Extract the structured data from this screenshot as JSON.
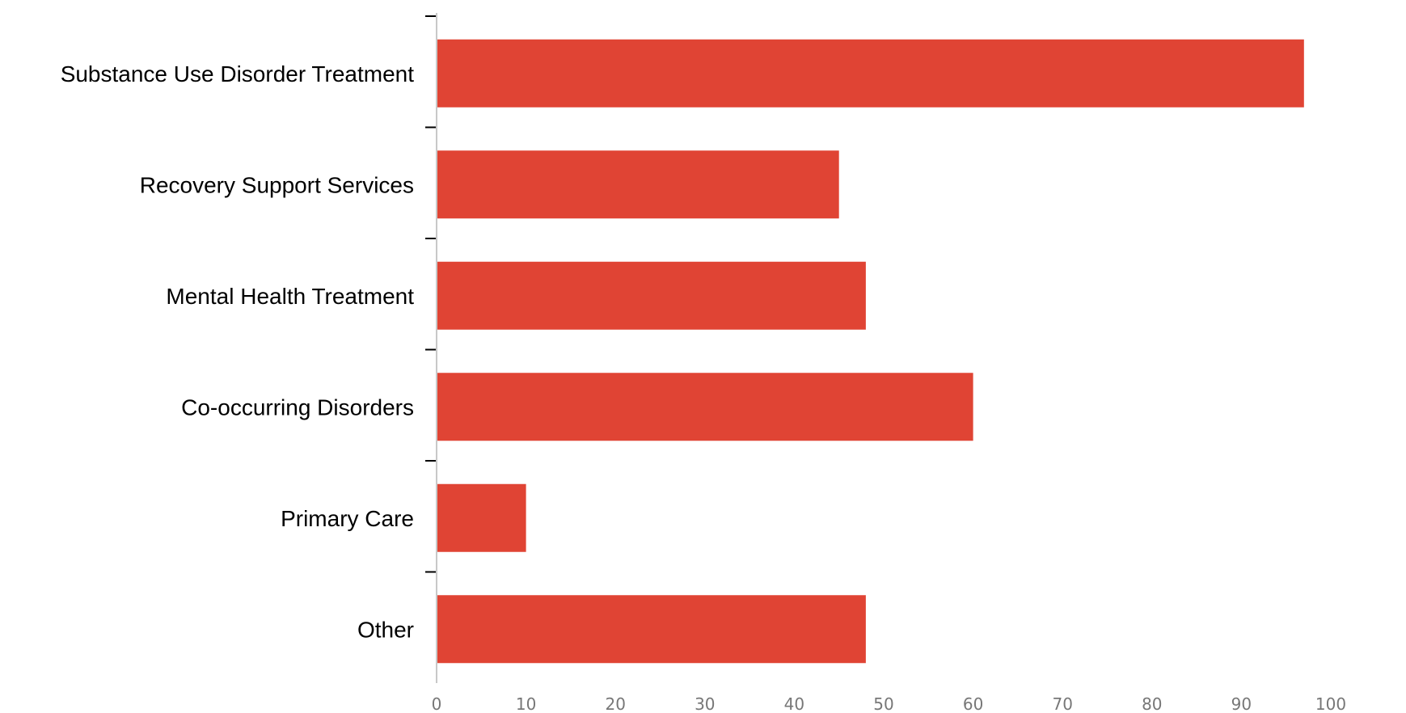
{
  "chart_data": {
    "type": "bar",
    "orientation": "horizontal",
    "categories": [
      "Substance Use Disorder Treatment",
      "Recovery Support Services",
      "Mental Health Treatment",
      "Co-occurring Disorders",
      "Primary Care",
      "Other"
    ],
    "values": [
      97,
      45,
      48,
      60,
      10,
      48
    ],
    "title": "",
    "xlabel": "",
    "ylabel": "",
    "xlim": [
      0,
      108
    ],
    "xticks": [
      "0",
      "10",
      "20",
      "30",
      "40",
      "50",
      "60",
      "70",
      "80",
      "90",
      "100"
    ],
    "grid": false,
    "legend": "none",
    "bar_color": "#e04434"
  }
}
